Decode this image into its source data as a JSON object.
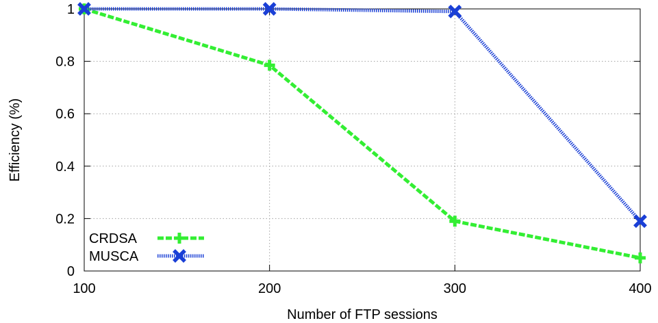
{
  "chart_data": {
    "type": "line",
    "title": "",
    "xlabel": "Number of FTP sessions",
    "ylabel": "Efficiency (%)",
    "x": [
      100,
      200,
      300,
      400
    ],
    "xlim": [
      100,
      400
    ],
    "ylim": [
      0,
      1
    ],
    "xticks": [
      {
        "value": 100,
        "label": "100"
      },
      {
        "value": 200,
        "label": "200"
      },
      {
        "value": 300,
        "label": "300"
      },
      {
        "value": 400,
        "label": "400"
      }
    ],
    "yticks": [
      {
        "value": 0,
        "label": "0"
      },
      {
        "value": 0.2,
        "label": "0.2"
      },
      {
        "value": 0.4,
        "label": "0.4"
      },
      {
        "value": 0.6,
        "label": "0.6"
      },
      {
        "value": 0.8,
        "label": "0.8"
      },
      {
        "value": 1,
        "label": "1"
      }
    ],
    "grid": true,
    "legend_position": "bottom-left",
    "series": [
      {
        "name": "CRDSA",
        "values": [
          1.0,
          0.785,
          0.19,
          0.05
        ],
        "color": "#33ee33",
        "marker": "plus-icon",
        "line_style": "dashed"
      },
      {
        "name": "MUSCA",
        "values": [
          1.0,
          1.0,
          0.99,
          0.19
        ],
        "color": "#1a3fd6",
        "marker": "x-cross-icon",
        "line_style": "dotted"
      }
    ]
  }
}
